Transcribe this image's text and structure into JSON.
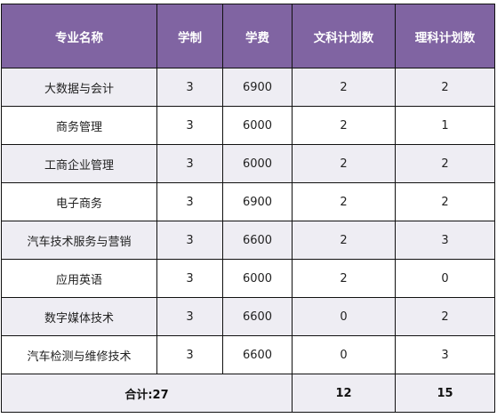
{
  "table": {
    "headers": [
      "专业名称",
      "学制",
      "学费",
      "文科计划数",
      "理科计划数"
    ],
    "rows": [
      [
        "大数据与会计",
        "3",
        "6900",
        "2",
        "2"
      ],
      [
        "商务管理",
        "3",
        "6000",
        "2",
        "1"
      ],
      [
        "工商企业管理",
        "3",
        "6000",
        "2",
        "2"
      ],
      [
        "电子商务",
        "3",
        "6900",
        "2",
        "2"
      ],
      [
        "汽车技术服务与营销",
        "3",
        "6600",
        "2",
        "3"
      ],
      [
        "应用英语",
        "3",
        "6000",
        "2",
        "0"
      ],
      [
        "数字媒体技术",
        "3",
        "6600",
        "0",
        "2"
      ],
      [
        "汽车检测与维修技术",
        "3",
        "6600",
        "0",
        "3"
      ]
    ],
    "footer": {
      "total_label": "合计:27",
      "arts_total": "12",
      "science_total": "15"
    }
  },
  "colors": {
    "header_bg": "#8064a2",
    "header_text": "#ffffff",
    "band_row_bg": "#eeedf3",
    "plain_row_bg": "#ffffff",
    "border": "#111111"
  }
}
